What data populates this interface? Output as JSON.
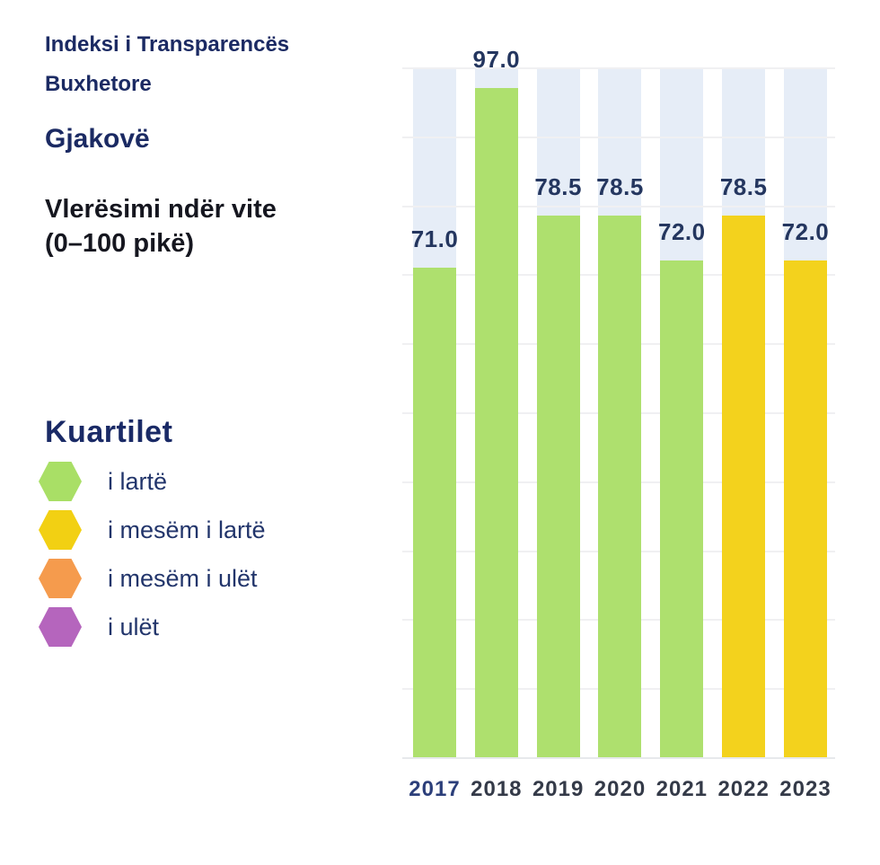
{
  "header": {
    "title_line1": "Indeksi i Transparencës",
    "title_line2": "Buxhetore",
    "municipality": "Gjakovë",
    "subtitle_line1": "Vlerësimi ndër vite",
    "subtitle_line2": "(0–100 pikë)"
  },
  "legend": {
    "title": "Kuartilet",
    "items": [
      {
        "id": "high",
        "label": "i lartë",
        "color": "#a9df66"
      },
      {
        "id": "upper-middle",
        "label": "i mesëm i lartë",
        "color": "#f2d013"
      },
      {
        "id": "lower-middle",
        "label": "i mesëm i ulët",
        "color": "#f59b4d"
      },
      {
        "id": "low",
        "label": "i ulët",
        "color": "#b565bd"
      }
    ]
  },
  "chart_data": {
    "type": "bar",
    "title": "Indeksi i Transparencës Buxhetore — Gjakovë — Vlerësimi ndër vite (0–100 pikë)",
    "categories": [
      "2017",
      "2018",
      "2019",
      "2020",
      "2021",
      "2022",
      "2023"
    ],
    "values": [
      71.0,
      97.0,
      78.5,
      78.5,
      72.0,
      78.5,
      72.0
    ],
    "value_labels": [
      "71.0",
      "97.0",
      "78.5",
      "78.5",
      "72.0",
      "78.5",
      "72.0"
    ],
    "bar_colors": [
      "#aee06e",
      "#aee06e",
      "#aee06e",
      "#aee06e",
      "#aee06e",
      "#f3d21d",
      "#f3d21d"
    ],
    "bar_quartiles": [
      "i lartë",
      "i lartë",
      "i lartë",
      "i lartë",
      "i lartë",
      "i mesëm i lartë",
      "i mesëm i lartë"
    ],
    "xlabel": "",
    "ylabel": "",
    "ylim": [
      0,
      100
    ],
    "grid": true,
    "gridline_step": 10,
    "legend_position": "left",
    "background_bar_color": "#e6edf7",
    "gridline_color": "#f0f0f2",
    "value_label_color": "#24365f",
    "year_label_color": "#343a48",
    "year_label_highlight_color": "#2c3f7a",
    "highlighted_year": "2017"
  }
}
